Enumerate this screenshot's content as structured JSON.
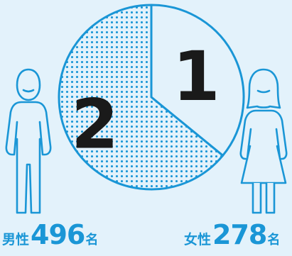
{
  "colors": {
    "background": "#e3f2fb",
    "accent": "#1a96d6",
    "dark": "#1a1a1a"
  },
  "chart_data": {
    "type": "pie",
    "slices": [
      {
        "name": "男性",
        "value": 496,
        "ratio_label": "2",
        "style": "dotted",
        "color": "#1a96d6"
      },
      {
        "name": "女性",
        "value": 278,
        "ratio_label": "1",
        "style": "plain",
        "color": "#e3f2fb"
      }
    ],
    "start_angle_deg": 0,
    "direction": "clockwise",
    "legend": "bottom"
  },
  "labels": {
    "male": {
      "gender": "男性",
      "count": "496",
      "unit": "名"
    },
    "female": {
      "gender": "女性",
      "count": "278",
      "unit": "名"
    }
  },
  "icons": [
    "male-figure-icon",
    "female-figure-icon"
  ]
}
